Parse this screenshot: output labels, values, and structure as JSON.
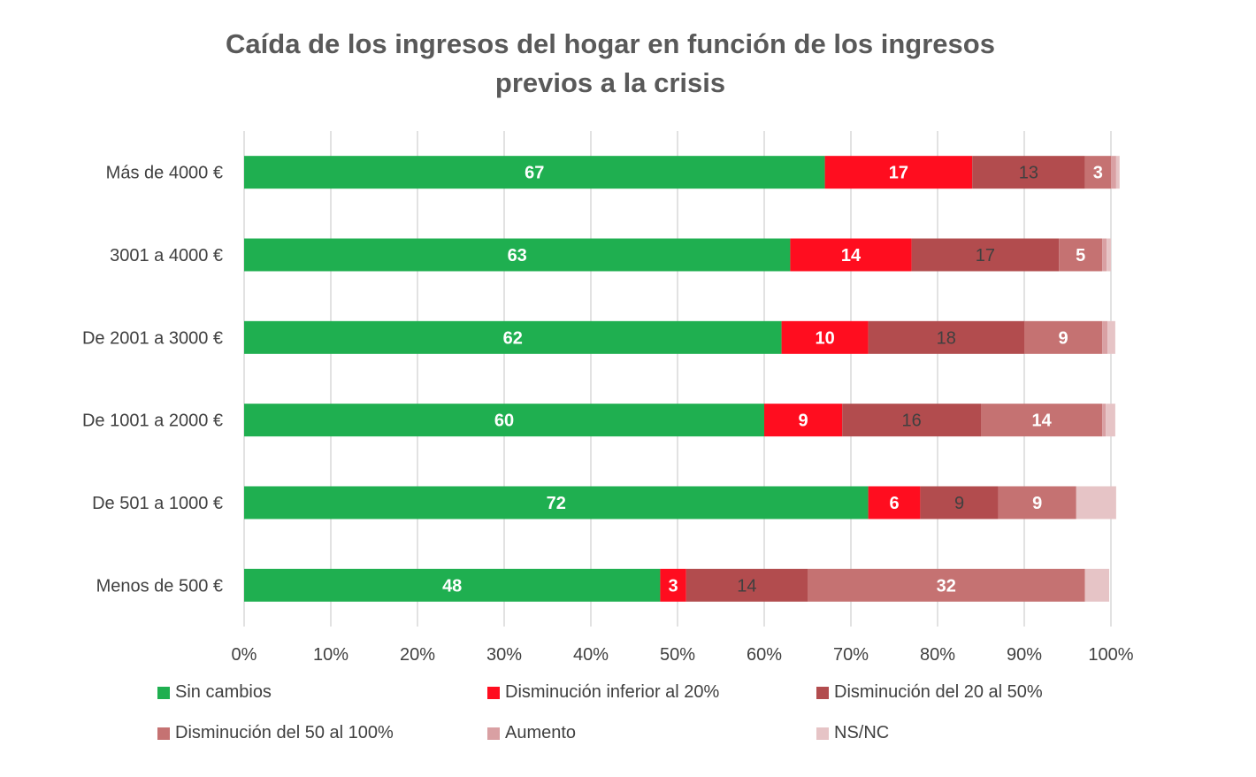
{
  "chart_data": {
    "type": "bar",
    "orientation": "horizontal",
    "stacked": "percent",
    "title_lines": [
      "Caída de los ingresos del hogar en función de los ingresos",
      "previos a la crisis"
    ],
    "xlabel": "",
    "ylabel": "",
    "xlim": [
      0,
      100
    ],
    "x_ticks": [
      "0%",
      "10%",
      "20%",
      "30%",
      "40%",
      "50%",
      "60%",
      "70%",
      "80%",
      "90%",
      "100%"
    ],
    "grid": "vertical",
    "legend_position": "bottom",
    "categories": [
      "Más de 4000 €",
      "3001 a 4000 €",
      "De 2001 a 3000 €",
      "De 1001 a 2000 €",
      "De 501 a 1000 €",
      "Menos de 500 €"
    ],
    "series": [
      {
        "name": "Sin cambios",
        "color": "#1faf50",
        "label_color": "#ffffff",
        "values": [
          67,
          63,
          62,
          60,
          72,
          48
        ],
        "labels": [
          "67",
          "63",
          "62",
          "60",
          "72",
          "48"
        ]
      },
      {
        "name": "Disminución inferior al 20%",
        "color": "#ff0d1f",
        "label_color": "#ffffff",
        "values": [
          17,
          14,
          10,
          9,
          6,
          3
        ],
        "labels": [
          "17",
          "14",
          "10",
          "9",
          "6",
          "3"
        ]
      },
      {
        "name": "Disminución del 20 al 50%",
        "color": "#b24c4e",
        "label_color": "#404040",
        "values": [
          13,
          17,
          18,
          16,
          9,
          14
        ],
        "labels": [
          "13",
          "17",
          "18",
          "16",
          "9",
          "14"
        ]
      },
      {
        "name": "Disminución del 50 al 100%",
        "color": "#c57272",
        "label_color": "#ffffff",
        "values": [
          3,
          5,
          9,
          14,
          9,
          32
        ],
        "labels": [
          "3",
          "5",
          "9",
          "14",
          "9",
          "32"
        ]
      },
      {
        "name": "Aumento",
        "color": "#d9a0a3",
        "label_color": "#ffffff",
        "values": [
          0.6,
          0.5,
          0.6,
          0.4,
          0,
          0
        ],
        "labels": [
          "",
          "",
          "",
          "",
          "",
          ""
        ]
      },
      {
        "name": "NS/NC",
        "color": "#e6c4c6",
        "label_color": "#ffffff",
        "values": [
          0.4,
          0.5,
          0.9,
          1.1,
          4.6,
          2.8
        ],
        "labels": [
          "",
          "",
          "",
          "",
          "",
          ""
        ]
      }
    ]
  }
}
